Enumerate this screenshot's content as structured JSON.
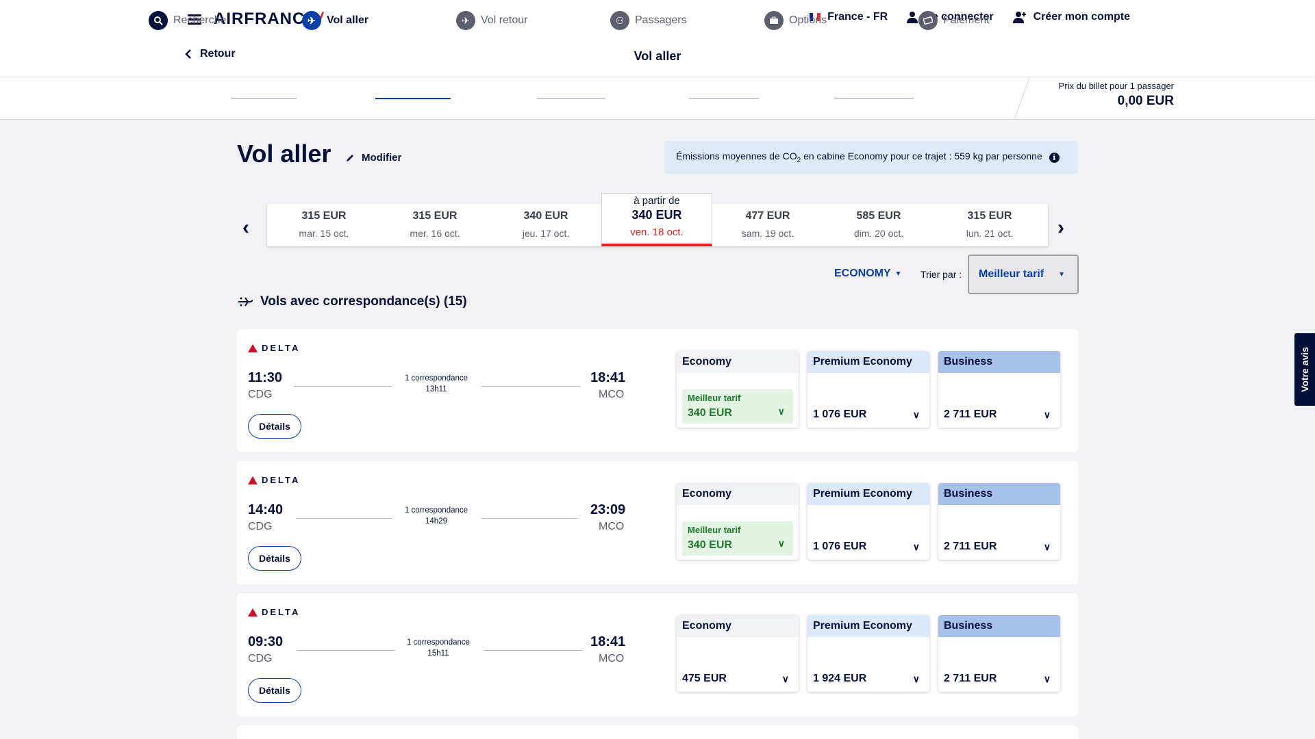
{
  "header": {
    "logo": "AIRFRANCE",
    "locale": "France - FR",
    "login": "Se connecter",
    "create_account": "Créer mon compte",
    "back": "Retour",
    "page_title": "Vol aller"
  },
  "steps": [
    {
      "label": "Recherche",
      "icon": "search-icon"
    },
    {
      "label": "Vol aller",
      "icon": "plane-departure-icon"
    },
    {
      "label": "Vol retour",
      "icon": "plane-arrival-icon"
    },
    {
      "label": "Passagers",
      "icon": "passengers-icon"
    },
    {
      "label": "Options",
      "icon": "briefcase-icon"
    },
    {
      "label": "Paiement",
      "icon": "ticket-icon"
    }
  ],
  "price_summary": {
    "label": "Prix du billet pour 1 passager",
    "value": "0,00 EUR"
  },
  "main": {
    "title": "Vol aller",
    "modify": "Modifier",
    "co2_before": "Émissions moyennes de CO",
    "co2_sub": "2",
    "co2_after": " en cabine Economy pour ce trajet : 559 kg par personne"
  },
  "dates": [
    {
      "price": "315 EUR",
      "date": "mar. 15 oct."
    },
    {
      "price": "315 EUR",
      "date": "mer. 16 oct."
    },
    {
      "price": "340 EUR",
      "date": "jeu. 17 oct."
    },
    {
      "from": "à partir de",
      "price": "340 EUR",
      "date": "ven. 18 oct."
    },
    {
      "price": "477 EUR",
      "date": "sam. 19 oct."
    },
    {
      "price": "585 EUR",
      "date": "dim. 20 oct."
    },
    {
      "price": "315 EUR",
      "date": "lun. 21 oct."
    }
  ],
  "filters": {
    "cabin": "ECONOMY",
    "sort_label": "Trier par :",
    "sort_value": "Meilleur tarif"
  },
  "section": {
    "title": "Vols avec correspondance(s) (15)"
  },
  "flights": [
    {
      "airline": "DELTA",
      "dep_time": "11:30",
      "dep_code": "CDG",
      "arr_time": "18:41",
      "arr_code": "MCO",
      "stops": "1 correspondance",
      "duration": "13h11",
      "details": "Détails",
      "fares": [
        {
          "cabin": "Economy",
          "best_label": "Meilleur tarif",
          "price": "340 EUR"
        },
        {
          "cabin": "Premium Economy",
          "price": "1 076 EUR"
        },
        {
          "cabin": "Business",
          "price": "2 711 EUR"
        }
      ]
    },
    {
      "airline": "DELTA",
      "dep_time": "14:40",
      "dep_code": "CDG",
      "arr_time": "23:09",
      "arr_code": "MCO",
      "stops": "1 correspondance",
      "duration": "14h29",
      "details": "Détails",
      "fares": [
        {
          "cabin": "Economy",
          "best_label": "Meilleur tarif",
          "price": "340 EUR"
        },
        {
          "cabin": "Premium Economy",
          "price": "1 076 EUR"
        },
        {
          "cabin": "Business",
          "price": "2 711 EUR"
        }
      ]
    },
    {
      "airline": "DELTA",
      "dep_time": "09:30",
      "dep_code": "CDG",
      "arr_time": "18:41",
      "arr_code": "MCO",
      "stops": "1 correspondance",
      "duration": "15h11",
      "details": "Détails",
      "fares": [
        {
          "cabin": "Economy",
          "price": "475 EUR"
        },
        {
          "cabin": "Premium Economy",
          "price": "1 924 EUR"
        },
        {
          "cabin": "Business",
          "price": "2 711 EUR"
        }
      ]
    }
  ],
  "feedback_tab": "Votre avis",
  "colors": {
    "navy": "#051039",
    "blue": "#0a3fa8",
    "red": "#e2231a",
    "green": "#1d7a2a"
  }
}
